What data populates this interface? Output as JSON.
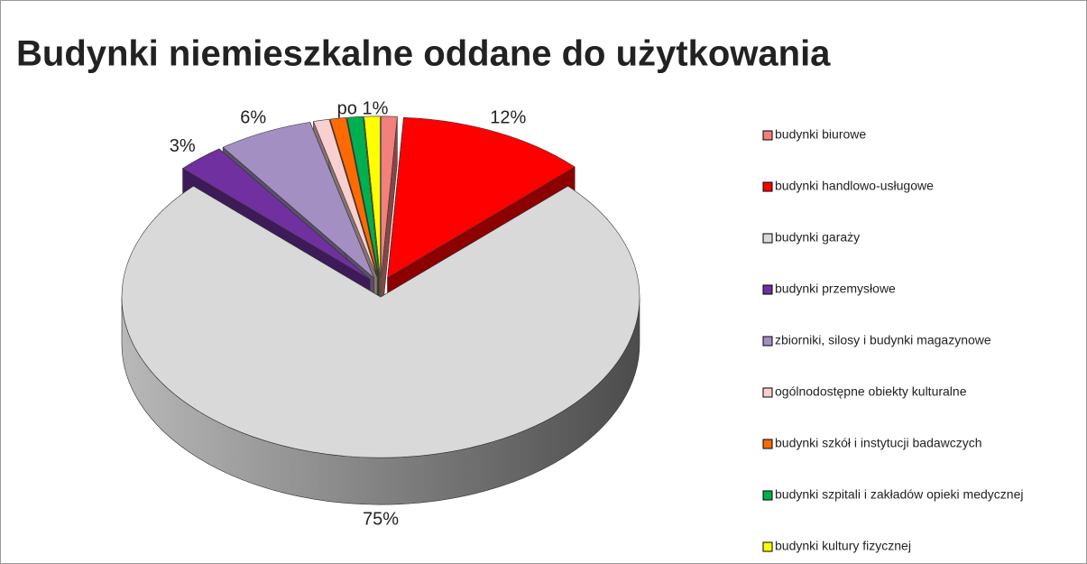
{
  "chart_data": {
    "type": "pie",
    "title": "Budynki niemieszkalne oddane do użytkowania",
    "categories": [
      "budynki biurowe",
      "budynki handlowo-usługowe",
      "budynki garaży",
      "budynki przemysłowe",
      "zbiorniki, silosy i budynki magazynowe",
      "ogólnodostępne obiekty kulturalne",
      "budynki szkół i instytucji badawczych",
      "budynki szpitali i zakładów opieki medycznej",
      "budynki kultury fizycznej"
    ],
    "values": [
      1,
      12,
      75,
      3,
      6,
      1,
      1,
      1,
      1
    ],
    "value_labels": [
      null,
      "12%",
      "75%",
      "3%",
      "6%",
      null,
      null,
      null,
      null
    ],
    "colors": [
      "#f4807c",
      "#ff0000",
      "#d9d9d9",
      "#7030a0",
      "#a38fc2",
      "#f9cfcf",
      "#ff6a00",
      "#00b050",
      "#ffff00"
    ],
    "annotation": "po 1%",
    "three_d": true,
    "exploded": true,
    "legend": "right"
  }
}
